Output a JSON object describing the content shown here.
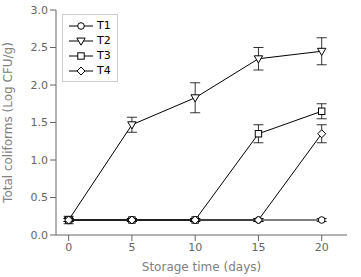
{
  "chart_data": {
    "type": "line",
    "xlabel": "Storage time (days)",
    "ylabel": "Total coliforms (Log CFU/g)",
    "x": [
      0,
      5,
      10,
      15,
      20
    ],
    "series": [
      {
        "name": "T1",
        "color": "#000000",
        "marker": "circle",
        "values": [
          0.2,
          0.2,
          0.2,
          0.2,
          0.2
        ],
        "yerr": [
          0.02,
          0.02,
          0.02,
          0.02,
          0.02
        ]
      },
      {
        "name": "T2",
        "color": "#000000",
        "marker": "triangle-down",
        "values": [
          0.2,
          1.47,
          1.83,
          2.35,
          2.45
        ],
        "yerr": [
          0.05,
          0.1,
          0.2,
          0.15,
          0.18
        ]
      },
      {
        "name": "T3",
        "color": "#000000",
        "marker": "square",
        "values": [
          0.2,
          0.2,
          0.2,
          1.35,
          1.65
        ],
        "yerr": [
          0.02,
          0.02,
          0.02,
          0.12,
          0.1
        ]
      },
      {
        "name": "T4",
        "color": "#000000",
        "marker": "diamond",
        "values": [
          0.2,
          0.2,
          0.2,
          0.2,
          1.35
        ],
        "yerr": [
          0.02,
          0.02,
          0.02,
          0.02,
          0.12
        ]
      }
    ],
    "xlim": [
      -1,
      22
    ],
    "xticks": [
      0,
      5,
      10,
      15,
      20
    ],
    "ylim": [
      0.0,
      3.0
    ],
    "yticks": [
      {
        "value": 0,
        "label": "0.0"
      },
      0.5,
      {
        "value": 1,
        "label": "1.0"
      },
      1.5,
      {
        "value": 2,
        "label": "2.0"
      },
      2.5,
      {
        "value": 3,
        "label": "3.0"
      }
    ],
    "legend": "upper left",
    "grid": false
  }
}
